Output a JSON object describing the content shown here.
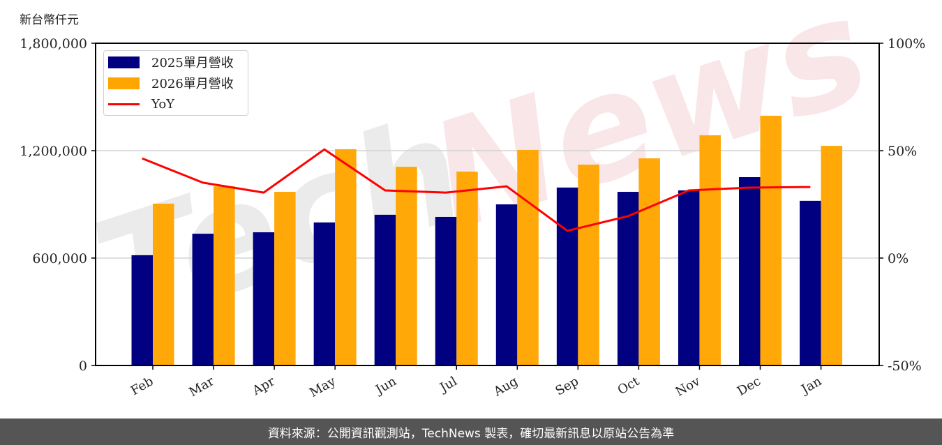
{
  "unit_label": "新台幣仟元",
  "footer": "資料來源：公開資訊觀測站，TechNews 製表，確切最新訊息以原站公告為準",
  "watermark": "TechNews",
  "colors": {
    "series_2025": "#000080",
    "series_2026": "#ffa500",
    "yoy": "#ff0000",
    "grid": "#d3d3d3",
    "footer_bg": "#555555"
  },
  "legend": {
    "items": [
      {
        "label": "2025單月營收",
        "color": "#000080",
        "kind": "bar"
      },
      {
        "label": "2026單月營收",
        "color": "#ffa500",
        "kind": "bar"
      },
      {
        "label": "YoY",
        "color": "#ff0000",
        "kind": "line"
      }
    ]
  },
  "chart_data": {
    "type": "bar",
    "title": "",
    "xlabel": "",
    "ylabel": "新台幣仟元",
    "y2label": "",
    "categories": [
      "Feb",
      "Mar",
      "Apr",
      "May",
      "Jun",
      "Jul",
      "Aug",
      "Sep",
      "Oct",
      "Nov",
      "Dec",
      "Jan"
    ],
    "series": [
      {
        "name": "2025單月營收",
        "type": "bar",
        "axis": "left",
        "values": [
          616000,
          736000,
          744000,
          799000,
          842000,
          830000,
          900000,
          994000,
          970000,
          978000,
          1052000,
          920000
        ]
      },
      {
        "name": "2026單月營收",
        "type": "bar",
        "axis": "left",
        "values": [
          904000,
          1001000,
          970000,
          1208000,
          1110000,
          1083000,
          1204000,
          1122000,
          1157000,
          1286000,
          1395000,
          1227000
        ]
      },
      {
        "name": "YoY",
        "type": "line",
        "axis": "right",
        "unit": "%",
        "values": [
          46.4,
          35.1,
          30.5,
          50.6,
          31.5,
          30.5,
          33.4,
          12.7,
          19.5,
          31.5,
          32.8,
          33.1
        ]
      }
    ],
    "ylim": [
      0,
      1800000
    ],
    "yticks": [
      0,
      600000,
      1200000,
      1800000
    ],
    "ytick_labels": [
      "0",
      "600,000",
      "1,200,000",
      "1,800,000"
    ],
    "y2lim": [
      -50,
      100
    ],
    "y2ticks": [
      -50,
      0,
      50,
      100
    ],
    "y2tick_labels": [
      "-50%",
      "0%",
      "50%",
      "100%"
    ],
    "grid": "horizontal",
    "legend_position": "upper left"
  }
}
